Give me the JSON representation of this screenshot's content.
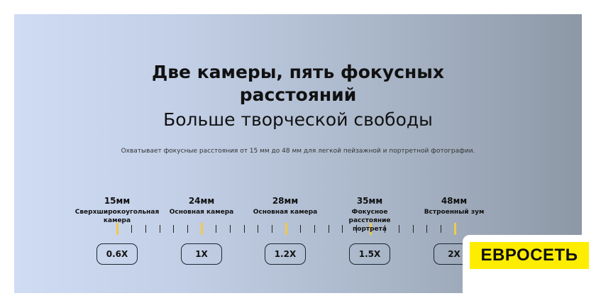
{
  "headline": {
    "line1": "Две камеры, пять фокусных",
    "line2": "расстояний",
    "line3": "Больше творческой свободы"
  },
  "subtitle": "Охватывает фокусные расстояния от 15 мм до 48 мм для легкой пейзажной и портретной фотографии.",
  "stops": [
    {
      "mm": "15мм",
      "desc": "Сверхширокоугольная камера",
      "zoom": "0.6X"
    },
    {
      "mm": "24мм",
      "desc": "Основная камера",
      "zoom": "1X"
    },
    {
      "mm": "28мм",
      "desc": "Основная камера",
      "zoom": "1.2X"
    },
    {
      "mm": "35мм",
      "desc": "Фокусное расстояние портрета",
      "zoom": "1.5X"
    },
    {
      "mm": "48мм",
      "desc": "Встроенный зум",
      "zoom": "2X"
    }
  ],
  "colors": {
    "accent": "#f0c94a",
    "logo_bg": "#ffed00"
  },
  "logo": "ЕВРОСЕТЬ"
}
